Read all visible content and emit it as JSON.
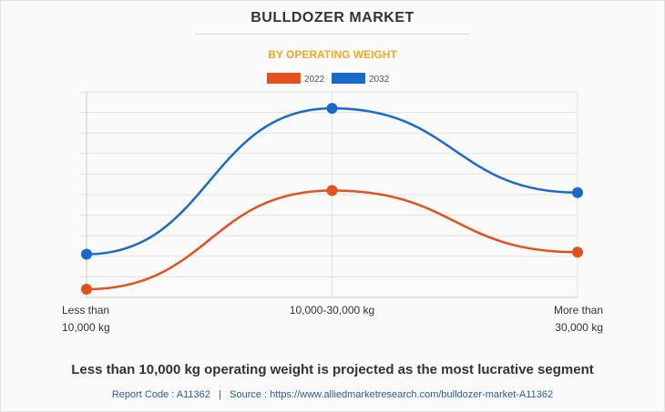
{
  "header": {
    "title": "BULLDOZER MARKET",
    "subtitle": "BY OPERATING WEIGHT"
  },
  "chart_data": {
    "type": "line",
    "title": "BULLDOZER MARKET",
    "subtitle": "BY OPERATING WEIGHT",
    "categories": [
      [
        "Less than",
        "10,000 kg"
      ],
      [
        "10,000-30,000 kg"
      ],
      [
        "More than",
        "30,000 kg"
      ]
    ],
    "series": [
      {
        "name": "2022",
        "color": "#e2521d",
        "values": [
          4,
          52,
          22
        ]
      },
      {
        "name": "2032",
        "color": "#1a6acb",
        "values": [
          21,
          92,
          51
        ]
      }
    ],
    "ylim": [
      0,
      100
    ],
    "y_tick_labels_shown": false,
    "grid": true,
    "smooth": true,
    "legend_position": "top-center"
  },
  "footer": {
    "headline": "Less than 10,000 kg operating weight is projected as the most lucrative segment",
    "report_code": "Report Code : A11362",
    "separator": "|",
    "source": "Source : https://www.alliedmarketresearch.com/bulldozer-market-A11362"
  }
}
